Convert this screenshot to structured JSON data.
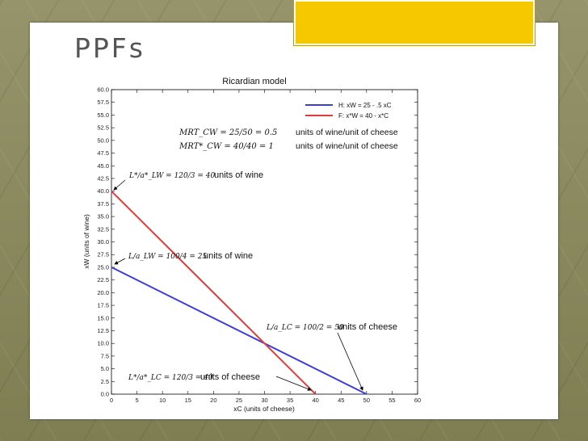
{
  "slide": {
    "title": "PPFs",
    "accent_color": "#f6c800"
  },
  "chart_data": {
    "type": "line",
    "title": "Ricardian model",
    "xlabel": "xC (units of cheese)",
    "ylabel": "xW (units of wine)",
    "xlim": [
      0,
      60
    ],
    "ylim": [
      0,
      60
    ],
    "xticks": [
      "0",
      "5",
      "10",
      "15",
      "20",
      "25",
      "30",
      "35",
      "40",
      "45",
      "50",
      "55",
      "60"
    ],
    "yticks": [
      "0.0",
      "2.5",
      "5.0",
      "7.5",
      "10.0",
      "12.5",
      "15.0",
      "17.5",
      "20.0",
      "22.5",
      "25.0",
      "27.5",
      "30.0",
      "32.5",
      "35.0",
      "37.5",
      "40.0",
      "42.5",
      "45.0",
      "47.5",
      "50.0",
      "52.5",
      "55.0",
      "57.5",
      "60.0"
    ],
    "legend_position": "top-right",
    "grid": false,
    "series": [
      {
        "name": "H: xW = 25 - .5 xC",
        "color": "#3f3fd6",
        "x": [
          0,
          50
        ],
        "y": [
          25,
          0
        ]
      },
      {
        "name": "F: x*W = 40 - x*C",
        "color": "#e03a3a",
        "x": [
          0,
          40
        ],
        "y": [
          40,
          0
        ]
      }
    ],
    "annotations": {
      "mrt_home_math": "MRT_CW = 25/50 = 0.5",
      "mrt_home_text": "units of wine/unit of cheese",
      "mrt_foreign_math": "MRT*_CW = 40/40 = 1",
      "mrt_foreign_text": "units of wine/unit of cheese",
      "foreign_wine_math": "L*/a*_LW = 120/3 = 40",
      "foreign_wine_text": "units of wine",
      "home_wine_math": "L/a_LW = 100/4 = 25",
      "home_wine_text": "units of wine",
      "home_cheese_math": "L/a_LC = 100/2 = 50",
      "home_cheese_text": "units of cheese",
      "foreign_cheese_math": "L*/a*_LC = 120/3 = 40",
      "foreign_cheese_text": "units of cheese"
    }
  }
}
